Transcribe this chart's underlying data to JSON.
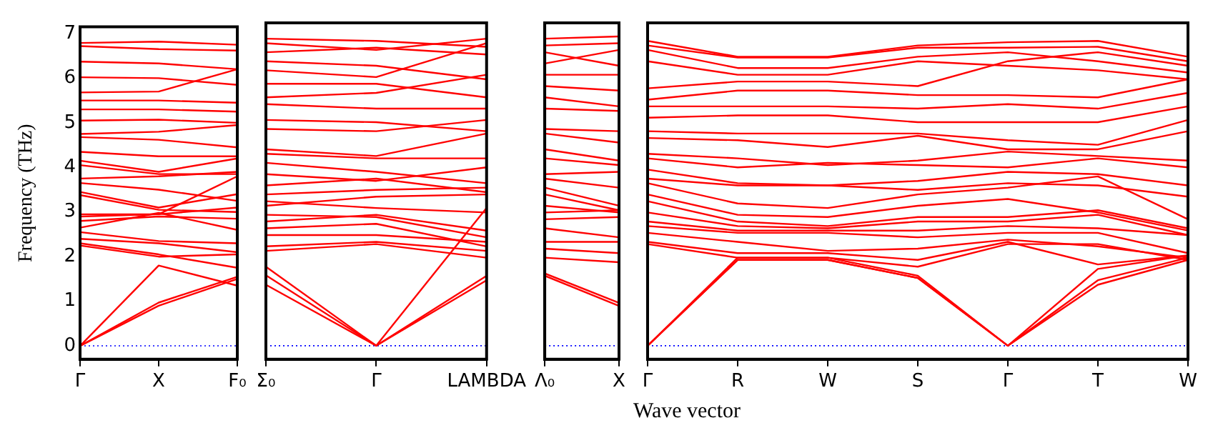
{
  "chart_data": [
    {
      "type": "line",
      "ylabel": "Frequency (THz)",
      "color": "#ff0000",
      "categories": [
        "Γ",
        "X",
        "F₀"
      ],
      "ylim": [
        -0.3,
        7.15
      ],
      "yticks": [
        0,
        1,
        2,
        3,
        4,
        5,
        6,
        7
      ],
      "ref_lines": [
        {
          "axis": "y",
          "value": 0,
          "color": "#0000ff",
          "line_style": "dotted"
        }
      ],
      "series": [
        {
          "values": [
            6.79,
            6.82,
            6.75
          ]
        },
        {
          "values": [
            6.72,
            6.65,
            6.62
          ]
        },
        {
          "values": [
            6.37,
            6.33,
            6.2
          ]
        },
        {
          "values": [
            6.02,
            6.0,
            5.85
          ]
        },
        {
          "values": [
            5.68,
            5.7,
            6.2
          ]
        },
        {
          "values": [
            5.5,
            5.5,
            5.45
          ]
        },
        {
          "values": [
            5.3,
            5.3,
            5.25
          ]
        },
        {
          "values": [
            5.05,
            5.07,
            5.0
          ]
        },
        {
          "values": [
            4.75,
            4.8,
            4.95
          ]
        },
        {
          "values": [
            4.68,
            4.62,
            4.45
          ]
        },
        {
          "values": [
            4.35,
            4.25,
            4.25
          ]
        },
        {
          "values": [
            4.15,
            3.9,
            4.2
          ]
        },
        {
          "values": [
            4.05,
            3.85,
            3.85
          ]
        },
        {
          "values": [
            3.75,
            3.8,
            3.9
          ]
        },
        {
          "values": [
            3.65,
            3.5,
            3.25
          ]
        },
        {
          "values": [
            3.45,
            3.1,
            3.4
          ]
        },
        {
          "values": [
            3.38,
            3.05,
            3.0
          ]
        },
        {
          "values": [
            2.95,
            2.95,
            3.8
          ]
        },
        {
          "values": [
            2.9,
            2.95,
            3.1
          ]
        },
        {
          "values": [
            2.8,
            2.9,
            2.85
          ]
        },
        {
          "values": [
            2.65,
            2.98,
            2.6
          ]
        },
        {
          "values": [
            2.55,
            2.35,
            2.3
          ]
        },
        {
          "values": [
            2.4,
            2.3,
            2.1
          ]
        },
        {
          "values": [
            2.3,
            2.05,
            1.75
          ]
        },
        {
          "values": [
            2.25,
            2.0,
            2.05
          ]
        },
        {
          "values": [
            0,
            1.8,
            1.35
          ]
        },
        {
          "values": [
            0,
            0.97,
            1.55
          ]
        },
        {
          "values": [
            0,
            0.9,
            1.5
          ]
        }
      ]
    },
    {
      "type": "line",
      "color": "#ff0000",
      "tick_labels": "x",
      "categories": [
        "Σ₀",
        "Γ",
        "LAMBDA"
      ],
      "ylim": [
        -0.3,
        7.15
      ],
      "yticks": [
        0,
        1,
        2,
        3,
        4,
        5,
        6,
        7
      ],
      "ref_lines": [
        {
          "axis": "y",
          "value": 0,
          "color": "#0000ff",
          "line_style": "dotted"
        }
      ],
      "series": [
        {
          "values": [
            6.8,
            6.75,
            6.62
          ]
        },
        {
          "values": [
            6.7,
            6.55,
            6.8
          ]
        },
        {
          "values": [
            6.5,
            6.6,
            6.45
          ]
        },
        {
          "values": [
            6.3,
            6.2,
            5.9
          ]
        },
        {
          "values": [
            6.1,
            5.95,
            6.7
          ]
        },
        {
          "values": [
            5.8,
            5.8,
            5.5
          ]
        },
        {
          "values": [
            5.5,
            5.6,
            6.0
          ]
        },
        {
          "values": [
            5.35,
            5.25,
            5.25
          ]
        },
        {
          "values": [
            5.0,
            4.95,
            4.75
          ]
        },
        {
          "values": [
            4.8,
            4.75,
            5.0
          ]
        },
        {
          "values": [
            4.35,
            4.2,
            4.7
          ]
        },
        {
          "values": [
            4.25,
            4.15,
            4.15
          ]
        },
        {
          "values": [
            4.05,
            3.85,
            3.6
          ]
        },
        {
          "values": [
            3.8,
            3.65,
            3.95
          ]
        },
        {
          "values": [
            3.55,
            3.7,
            3.4
          ]
        },
        {
          "values": [
            3.35,
            3.45,
            3.5
          ]
        },
        {
          "values": [
            3.2,
            3.05,
            2.95
          ]
        },
        {
          "values": [
            3.1,
            3.3,
            3.35
          ]
        },
        {
          "values": [
            2.9,
            2.85,
            2.4
          ]
        },
        {
          "values": [
            2.75,
            2.9,
            2.55
          ]
        },
        {
          "values": [
            2.6,
            2.7,
            2.2
          ]
        },
        {
          "values": [
            2.45,
            2.45,
            2.3
          ]
        },
        {
          "values": [
            2.2,
            2.3,
            2.1
          ]
        },
        {
          "values": [
            2.1,
            2.25,
            1.95
          ]
        },
        {
          "values": [
            1.75,
            0,
            3.05
          ]
        },
        {
          "values": [
            1.56,
            0,
            1.55
          ]
        },
        {
          "values": [
            1.35,
            0,
            1.45
          ]
        }
      ]
    },
    {
      "type": "line",
      "color": "#ff0000",
      "tick_labels": "x",
      "categories": [
        "Λ₀",
        "X"
      ],
      "ylim": [
        -0.3,
        7.15
      ],
      "yticks": [
        0,
        1,
        2,
        3,
        4,
        5,
        6,
        7
      ],
      "ref_lines": [
        {
          "axis": "y",
          "value": 0,
          "color": "#0000ff",
          "line_style": "dotted"
        }
      ],
      "series": [
        {
          "values": [
            6.8,
            6.85
          ]
        },
        {
          "values": [
            6.65,
            6.7
          ]
        },
        {
          "values": [
            6.5,
            6.2
          ]
        },
        {
          "values": [
            6.25,
            6.55
          ]
        },
        {
          "values": [
            6.0,
            6.0
          ]
        },
        {
          "values": [
            5.75,
            5.65
          ]
        },
        {
          "values": [
            5.5,
            5.3
          ]
        },
        {
          "values": [
            5.25,
            5.2
          ]
        },
        {
          "values": [
            4.8,
            4.75
          ]
        },
        {
          "values": [
            4.7,
            4.5
          ]
        },
        {
          "values": [
            4.35,
            4.1
          ]
        },
        {
          "values": [
            4.15,
            4.0
          ]
        },
        {
          "values": [
            3.8,
            3.85
          ]
        },
        {
          "values": [
            3.7,
            3.5
          ]
        },
        {
          "values": [
            3.5,
            3.1
          ]
        },
        {
          "values": [
            3.35,
            3.0
          ]
        },
        {
          "values": [
            3.1,
            2.95
          ]
        },
        {
          "values": [
            2.95,
            3.0
          ]
        },
        {
          "values": [
            2.8,
            2.85
          ]
        },
        {
          "values": [
            2.6,
            2.4
          ]
        },
        {
          "values": [
            2.3,
            2.3
          ]
        },
        {
          "values": [
            2.15,
            2.05
          ]
        },
        {
          "values": [
            1.95,
            1.85
          ]
        },
        {
          "values": [
            1.6,
            0.95
          ]
        },
        {
          "values": [
            1.55,
            0.88
          ]
        }
      ]
    },
    {
      "type": "line",
      "xlabel": "Wave vector",
      "color": "#ff0000",
      "tick_labels": "x",
      "categories": [
        "Γ",
        "R",
        "W",
        "S",
        "Γ",
        "T",
        "W"
      ],
      "ylim": [
        -0.3,
        7.15
      ],
      "yticks": [
        0,
        1,
        2,
        3,
        4,
        5,
        6,
        7
      ],
      "ref_lines": [
        {
          "axis": "y",
          "value": 0,
          "color": "#0000ff",
          "line_style": "dotted"
        }
      ],
      "series": [
        {
          "values": [
            6.75,
            6.4,
            6.4,
            6.65,
            6.72,
            6.75,
            6.4
          ]
        },
        {
          "values": [
            6.65,
            6.38,
            6.38,
            6.6,
            6.6,
            6.62,
            6.3
          ]
        },
        {
          "values": [
            6.55,
            6.15,
            6.15,
            6.4,
            6.5,
            6.3,
            6.05
          ]
        },
        {
          "values": [
            6.3,
            6.0,
            6.0,
            6.3,
            6.2,
            6.1,
            5.9
          ]
        },
        {
          "values": [
            5.7,
            5.85,
            5.85,
            5.75,
            6.3,
            6.5,
            6.2
          ]
        },
        {
          "values": [
            5.45,
            5.65,
            5.65,
            5.55,
            5.55,
            5.5,
            5.9
          ]
        },
        {
          "values": [
            5.3,
            5.3,
            5.3,
            5.25,
            5.35,
            5.25,
            5.6
          ]
        },
        {
          "values": [
            5.05,
            5.1,
            5.1,
            4.95,
            4.95,
            4.95,
            5.3
          ]
        },
        {
          "values": [
            4.75,
            4.7,
            4.7,
            4.7,
            4.55,
            4.45,
            5.0
          ]
        },
        {
          "values": [
            4.6,
            4.55,
            4.4,
            4.65,
            4.35,
            4.35,
            4.75
          ]
        },
        {
          "values": [
            4.25,
            4.15,
            4.0,
            4.1,
            4.3,
            4.2,
            4.1
          ]
        },
        {
          "values": [
            4.15,
            3.95,
            4.05,
            4.0,
            3.95,
            4.15,
            3.95
          ]
        },
        {
          "values": [
            3.9,
            3.6,
            3.55,
            3.65,
            3.85,
            3.8,
            3.55
          ]
        },
        {
          "values": [
            3.7,
            3.55,
            3.55,
            3.45,
            3.6,
            3.55,
            3.3
          ]
        },
        {
          "values": [
            3.6,
            3.15,
            3.05,
            3.35,
            3.5,
            3.75,
            2.8
          ]
        },
        {
          "values": [
            3.35,
            2.9,
            2.85,
            3.1,
            3.25,
            2.95,
            2.55
          ]
        },
        {
          "values": [
            3.2,
            2.75,
            2.65,
            2.85,
            2.85,
            3.0,
            2.6
          ]
        },
        {
          "values": [
            2.95,
            2.65,
            2.6,
            2.75,
            2.75,
            2.9,
            2.45
          ]
        },
        {
          "values": [
            2.75,
            2.55,
            2.55,
            2.55,
            2.65,
            2.6,
            2.45
          ]
        },
        {
          "values": [
            2.65,
            2.5,
            2.5,
            2.4,
            2.5,
            2.5,
            2.05
          ]
        },
        {
          "values": [
            2.5,
            2.3,
            2.1,
            2.15,
            2.35,
            2.2,
            1.95
          ]
        },
        {
          "values": [
            2.3,
            2.05,
            2.05,
            1.9,
            2.3,
            1.8,
            2.0
          ]
        },
        {
          "values": [
            2.25,
            1.95,
            1.95,
            1.75,
            2.25,
            2.25,
            1.9
          ]
        },
        {
          "values": [
            0,
            1.95,
            1.95,
            1.55,
            0,
            1.7,
            2.0
          ]
        },
        {
          "values": [
            0,
            1.9,
            1.9,
            1.5,
            0,
            1.45,
            1.95
          ]
        },
        {
          "values": [
            0,
            1.9,
            1.9,
            1.5,
            0,
            1.35,
            1.9
          ]
        }
      ]
    }
  ]
}
